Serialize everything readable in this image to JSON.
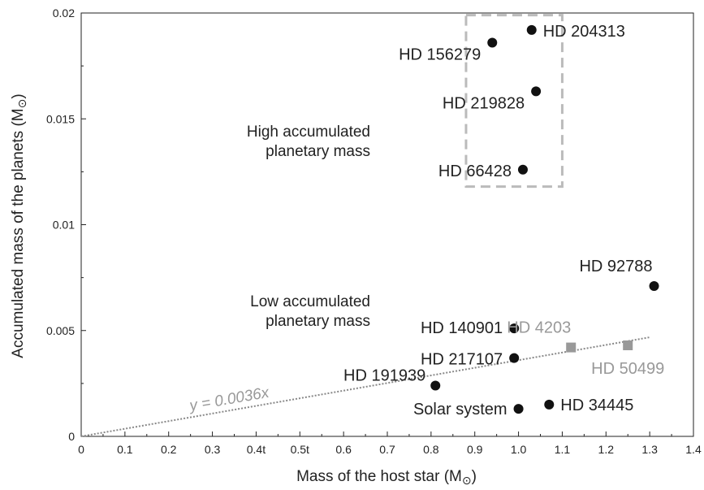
{
  "chart_data": {
    "type": "scatter",
    "xlabel": "Mass of the host star (M",
    "ylabel": "Accumulated mass of the planets (M",
    "sun_symbol": "⊙",
    "xlim": [
      0,
      1.4
    ],
    "ylim": [
      0,
      0.02
    ],
    "x_ticks": [
      {
        "value": 0,
        "label": "0"
      },
      {
        "value": 0.1,
        "label": "0.1"
      },
      {
        "value": 0.2,
        "label": "0.2"
      },
      {
        "value": 0.3,
        "label": "0.3"
      },
      {
        "value": 0.4,
        "label": "0.4t"
      },
      {
        "value": 0.5,
        "label": "0.5t"
      },
      {
        "value": 0.6,
        "label": "0.6"
      },
      {
        "value": 0.7,
        "label": "0.7"
      },
      {
        "value": 0.8,
        "label": "0.8"
      },
      {
        "value": 0.9,
        "label": "0.9"
      },
      {
        "value": 1.0,
        "label": "1.0"
      },
      {
        "value": 1.1,
        "label": "1.1"
      },
      {
        "value": 1.2,
        "label": "1.2"
      },
      {
        "value": 1.3,
        "label": "1.3"
      },
      {
        "value": 1.4,
        "label": "1.4"
      }
    ],
    "y_ticks": [
      {
        "value": 0,
        "label": "0"
      },
      {
        "value": 0.005,
        "label": "0.005"
      },
      {
        "value": 0.01,
        "label": "0.01"
      },
      {
        "value": 0.015,
        "label": "0.015"
      },
      {
        "value": 0.02,
        "label": "0.02"
      }
    ],
    "grid": false,
    "points": [
      {
        "label": "HD 204313",
        "x": 1.03,
        "y": 0.0192,
        "marker": "circle",
        "color": "#111111"
      },
      {
        "label": "HD 156279",
        "x": 0.94,
        "y": 0.0186,
        "marker": "circle",
        "color": "#111111"
      },
      {
        "label": "HD 219828",
        "x": 1.04,
        "y": 0.0163,
        "marker": "circle",
        "color": "#111111"
      },
      {
        "label": "HD 66428",
        "x": 1.01,
        "y": 0.0126,
        "marker": "circle",
        "color": "#111111"
      },
      {
        "label": "HD 92788",
        "x": 1.31,
        "y": 0.0071,
        "marker": "circle",
        "color": "#111111"
      },
      {
        "label": "HD 140901",
        "x": 0.99,
        "y": 0.0051,
        "marker": "circle",
        "color": "#111111"
      },
      {
        "label": "HD 217107",
        "x": 0.99,
        "y": 0.0037,
        "marker": "circle",
        "color": "#111111"
      },
      {
        "label": "HD 191939",
        "x": 0.81,
        "y": 0.0024,
        "marker": "circle",
        "color": "#111111"
      },
      {
        "label": "Solar system",
        "x": 1.0,
        "y": 0.0013,
        "marker": "circle",
        "color": "#111111"
      },
      {
        "label": "HD 34445",
        "x": 1.07,
        "y": 0.0015,
        "marker": "circle",
        "color": "#111111"
      },
      {
        "label": "HD 4203",
        "x": 1.12,
        "y": 0.0042,
        "marker": "square",
        "color": "#999999"
      },
      {
        "label": "HD 50499",
        "x": 1.25,
        "y": 0.0043,
        "marker": "square",
        "color": "#999999"
      }
    ],
    "fit_line": {
      "label": "y = 0.0036x",
      "slope": 0.0036,
      "x_range": [
        0,
        1.3
      ],
      "color": "#888888"
    },
    "region_box": {
      "x_range": [
        0.88,
        1.1
      ],
      "y_range": [
        0.0118,
        0.0199
      ],
      "color": "#bbbbbb"
    },
    "annotations": [
      {
        "lines": [
          "High accumulated",
          "planetary mass"
        ]
      },
      {
        "lines": [
          "Low accumulated",
          "planetary mass"
        ]
      }
    ]
  }
}
